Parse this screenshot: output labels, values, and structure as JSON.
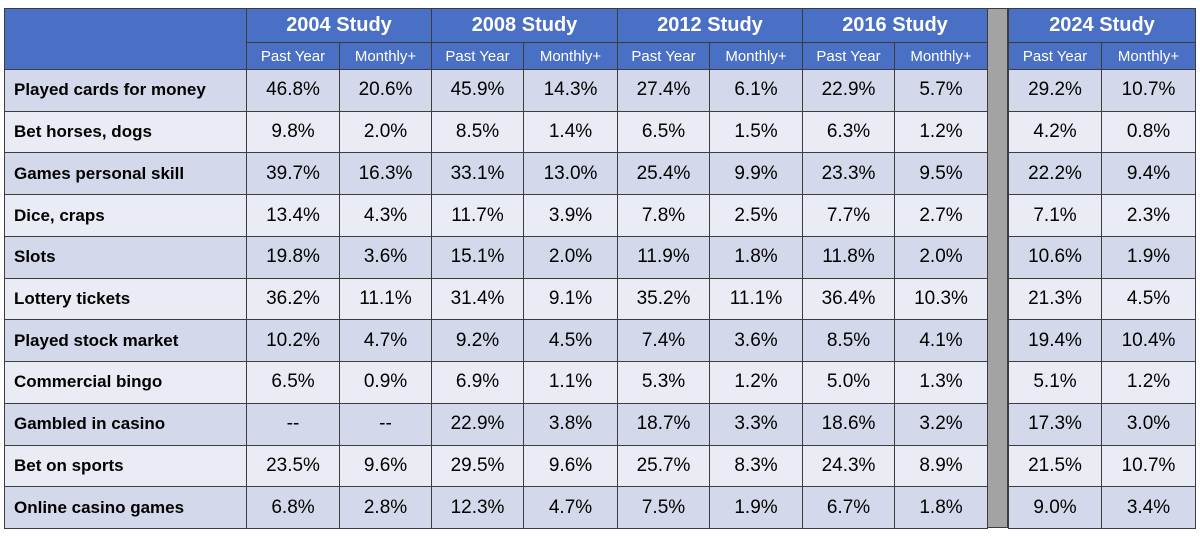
{
  "table": {
    "groups": [
      "2004 Study",
      "2008 Study",
      "2012 Study",
      "2016 Study",
      "2024 Study"
    ],
    "subheaders": [
      "Past Year",
      "Monthly+",
      "Past Year",
      "Monthly+",
      "Past Year",
      "Monthly+",
      "Past Year",
      "Monthly+",
      "Past Year",
      "Monthly+"
    ],
    "rows": [
      {
        "label": "Played cards for money",
        "values": [
          "46.8%",
          "20.6%",
          "45.9%",
          "14.3%",
          "27.4%",
          "6.1%",
          "22.9%",
          "5.7%",
          "29.2%",
          "10.7%"
        ]
      },
      {
        "label": "Bet horses, dogs",
        "values": [
          "9.8%",
          "2.0%",
          "8.5%",
          "1.4%",
          "6.5%",
          "1.5%",
          "6.3%",
          "1.2%",
          "4.2%",
          "0.8%"
        ]
      },
      {
        "label": "Games personal skill",
        "values": [
          "39.7%",
          "16.3%",
          "33.1%",
          "13.0%",
          "25.4%",
          "9.9%",
          "23.3%",
          "9.5%",
          "22.2%",
          "9.4%"
        ]
      },
      {
        "label": "Dice, craps",
        "values": [
          "13.4%",
          "4.3%",
          "11.7%",
          "3.9%",
          "7.8%",
          "2.5%",
          "7.7%",
          "2.7%",
          "7.1%",
          "2.3%"
        ]
      },
      {
        "label": "Slots",
        "values": [
          "19.8%",
          "3.6%",
          "15.1%",
          "2.0%",
          "11.9%",
          "1.8%",
          "11.8%",
          "2.0%",
          "10.6%",
          "1.9%"
        ]
      },
      {
        "label": "Lottery tickets",
        "values": [
          "36.2%",
          "11.1%",
          "31.4%",
          "9.1%",
          "35.2%",
          "11.1%",
          "36.4%",
          "10.3%",
          "21.3%",
          "4.5%"
        ]
      },
      {
        "label": "Played stock market",
        "values": [
          "10.2%",
          "4.7%",
          "9.2%",
          "4.5%",
          "7.4%",
          "3.6%",
          "8.5%",
          "4.1%",
          "19.4%",
          "10.4%"
        ]
      },
      {
        "label": "Commercial bingo",
        "values": [
          "6.5%",
          "0.9%",
          "6.9%",
          "1.1%",
          "5.3%",
          "1.2%",
          "5.0%",
          "1.3%",
          "5.1%",
          "1.2%"
        ]
      },
      {
        "label": "Gambled in casino",
        "values": [
          "--",
          "--",
          "22.9%",
          "3.8%",
          "18.7%",
          "3.3%",
          "18.6%",
          "3.2%",
          "17.3%",
          "3.0%"
        ]
      },
      {
        "label": "Bet on sports",
        "values": [
          "23.5%",
          "9.6%",
          "29.5%",
          "9.6%",
          "25.7%",
          "8.3%",
          "24.3%",
          "8.9%",
          "21.5%",
          "10.7%"
        ]
      },
      {
        "label": "Online casino games",
        "values": [
          "6.8%",
          "2.8%",
          "12.3%",
          "4.7%",
          "7.5%",
          "1.9%",
          "6.7%",
          "1.8%",
          "9.0%",
          "3.4%"
        ]
      }
    ]
  }
}
